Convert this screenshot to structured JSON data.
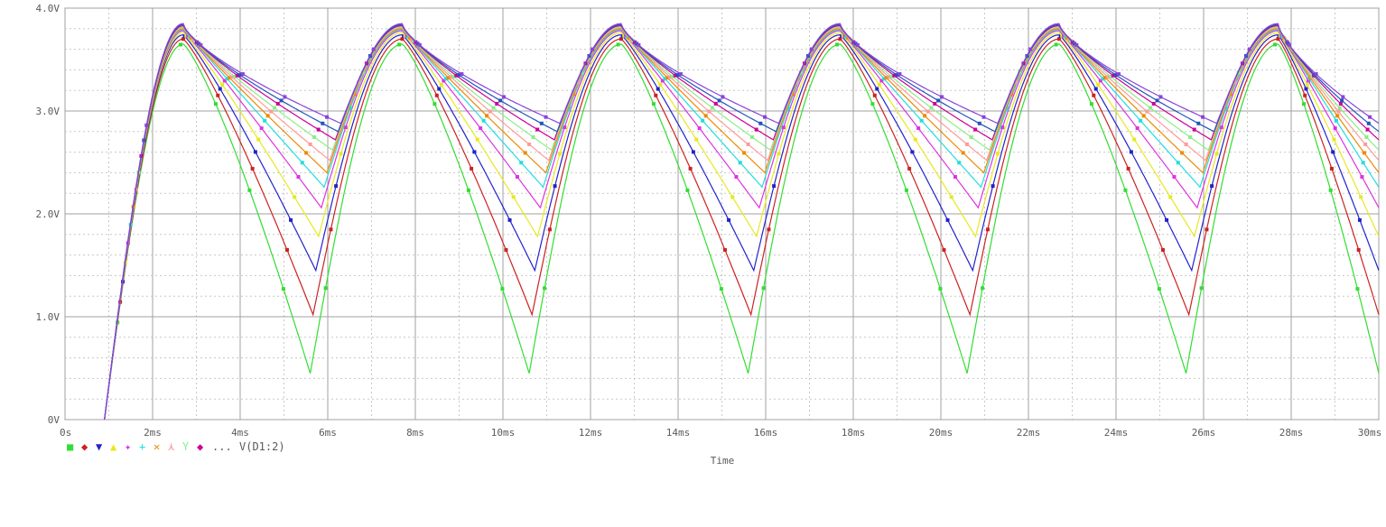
{
  "chart_data": {
    "type": "line",
    "title": "",
    "xlabel": "Time",
    "ylabel": "",
    "xlim": [
      0,
      30
    ],
    "ylim": [
      0,
      4.0
    ],
    "x_unit": "ms",
    "y_unit": "V",
    "x_ticks": [
      "0s",
      "2ms",
      "4ms",
      "6ms",
      "8ms",
      "10ms",
      "12ms",
      "14ms",
      "16ms",
      "18ms",
      "20ms",
      "22ms",
      "24ms",
      "26ms",
      "28ms",
      "30ms"
    ],
    "y_ticks": [
      "0V",
      "1.0V",
      "2.0V",
      "3.0V",
      "4.0V"
    ],
    "grid": true,
    "grid_style": "dotted",
    "legend": {
      "placement": "bottom-left",
      "trace_label": "V(D1:2)",
      "ellipsis": "...",
      "markers": [
        "■",
        "◆",
        "▼",
        "▲",
        "✦",
        "+",
        "✕",
        "⋏",
        "Y",
        "◆"
      ]
    },
    "series": [
      {
        "color": "#33dd33",
        "marker": "square",
        "peak": 3.65,
        "trough": 0.45
      },
      {
        "color": "#cc2222",
        "marker": "diamond",
        "peak": 3.7,
        "trough": 1.02
      },
      {
        "color": "#2222cc",
        "marker": "triangle-down",
        "peak": 3.74,
        "trough": 1.45
      },
      {
        "color": "#e8e822",
        "marker": "triangle-up",
        "peak": 3.76,
        "trough": 1.78
      },
      {
        "color": "#dd33dd",
        "marker": "star",
        "peak": 3.78,
        "trough": 2.06
      },
      {
        "color": "#22dddd",
        "marker": "plus",
        "peak": 3.79,
        "trough": 2.26
      },
      {
        "color": "#ee8800",
        "marker": "cross",
        "peak": 3.8,
        "trough": 2.4
      },
      {
        "color": "#ff9999",
        "marker": "lambda",
        "peak": 3.81,
        "trough": 2.52
      },
      {
        "color": "#88ee88",
        "marker": "y",
        "peak": 3.82,
        "trough": 2.62
      },
      {
        "color": "#cc0099",
        "marker": "diamond",
        "peak": 3.83,
        "trough": 2.72
      },
      {
        "color": "#2255bb",
        "marker": "square",
        "peak": 3.84,
        "trough": 2.8
      },
      {
        "color": "#8844dd",
        "marker": "diamond",
        "peak": 3.85,
        "trough": 2.88
      }
    ],
    "periods": [
      {
        "start": 0.5,
        "peak_t": 2.7,
        "end": 7.2
      },
      {
        "start": 7.2,
        "peak_t": 7.7,
        "end": 12.2
      },
      {
        "start": 12.2,
        "peak_t": 12.7,
        "end": 17.2
      },
      {
        "start": 17.2,
        "peak_t": 17.7,
        "end": 22.2
      },
      {
        "start": 22.2,
        "peak_t": 22.7,
        "end": 27.2
      },
      {
        "start": 27.2,
        "peak_t": 27.7,
        "end": 30.0
      }
    ]
  }
}
